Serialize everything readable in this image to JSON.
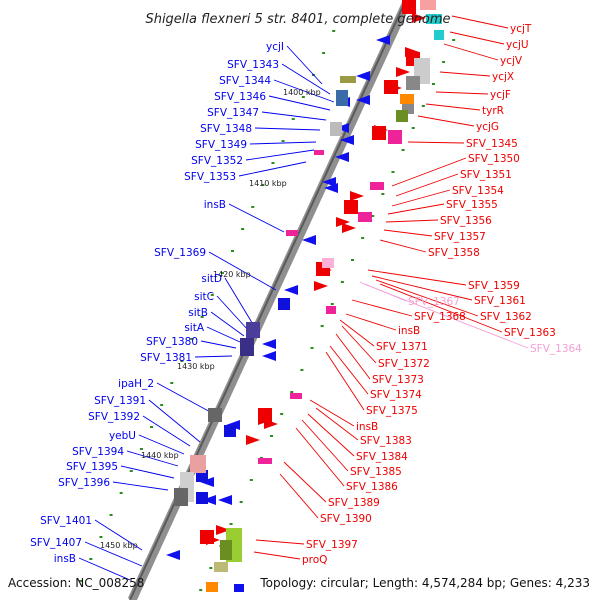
{
  "title": "Shigella flexneri 5 str. 8401, complete genome",
  "accession": "Accession: NC_008258",
  "summary": "Topology: circular; Length: 4,574,284 bp; Genes: 4,233",
  "colors": {
    "backbone": "#8a8a8a",
    "left_labels": "#0000ee",
    "right_labels": "#ee0000",
    "faded_labels": "#f3a0d6",
    "tick_marks": "#2e8b22"
  },
  "kbp_markers": [
    "1400 kbp",
    "1410 kbp",
    "1420 kbp",
    "1430 kbp",
    "1440 kbp",
    "1450 kbp"
  ],
  "left_genes": [
    "ycjI",
    "SFV_1343",
    "SFV_1344",
    "SFV_1346",
    "SFV_1347",
    "SFV_1348",
    "SFV_1349",
    "SFV_1352",
    "SFV_1353",
    "insB",
    "SFV_1369",
    "sitD",
    "sitC",
    "sitB",
    "sitA",
    "SFV_1380",
    "SFV_1381",
    "ipaH_2",
    "SFV_1391",
    "SFV_1392",
    "yebU",
    "SFV_1394",
    "SFV_1395",
    "SFV_1396",
    "SFV_1401",
    "SFV_1407",
    "insB"
  ],
  "right_genes": [
    "ycjT",
    "ycjU",
    "ycjV",
    "ycjX",
    "ycjF",
    "tyrR",
    "ycjG",
    "SFV_1345",
    "SFV_1350",
    "SFV_1351",
    "SFV_1354",
    "SFV_1355",
    "SFV_1356",
    "SFV_1357",
    "SFV_1358",
    "SFV_1359",
    "SFV_1367",
    "SFV_1361",
    "SFV_1368",
    "SFV_1362",
    "insB",
    "SFV_1363",
    "SFV_1364",
    "SFV_1371",
    "SFV_1372",
    "SFV_1373",
    "SFV_1374",
    "SFV_1375",
    "insB",
    "SFV_1383",
    "SFV_1384",
    "SFV_1385",
    "SFV_1386",
    "SFV_1389",
    "SFV_1390",
    "SFV_1397",
    "proQ"
  ]
}
